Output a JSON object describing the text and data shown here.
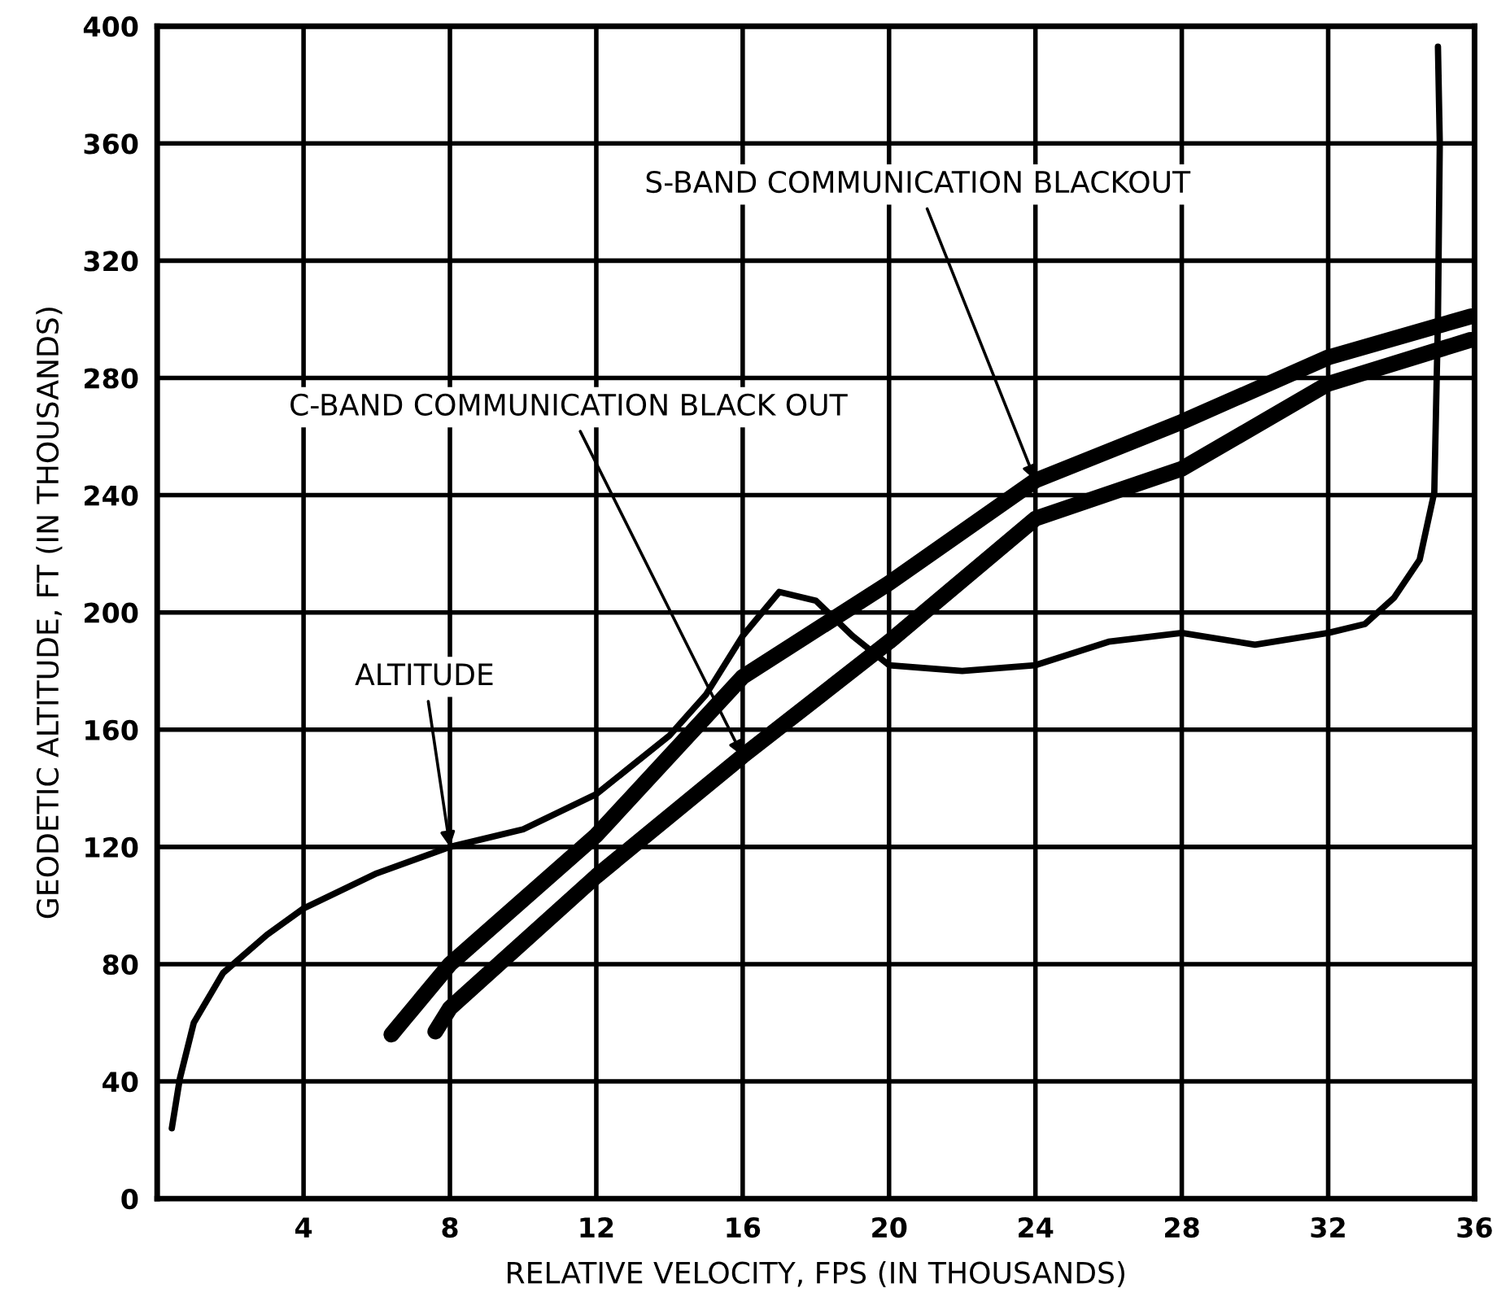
{
  "chart_data": {
    "type": "line",
    "xlabel": "RELATIVE VELOCITY, FPS (IN THOUSANDS)",
    "ylabel": "GEODETIC ALTITUDE, FT (IN THOUSANDS)",
    "xlim": [
      0,
      36
    ],
    "ylim": [
      0,
      400
    ],
    "xticks": [
      4,
      8,
      12,
      16,
      20,
      24,
      28,
      32,
      36
    ],
    "yticks": [
      0,
      40,
      80,
      120,
      160,
      200,
      240,
      280,
      320,
      360,
      400
    ],
    "grid": true,
    "series": [
      {
        "color": "#000000",
        "line_style": "solid",
        "x": [
          0.4,
          0.62,
          1.0,
          1.8,
          3.0,
          4,
          6,
          8,
          10,
          12,
          14,
          15,
          16,
          17,
          18,
          19,
          20,
          22,
          24,
          26,
          28,
          30,
          32,
          33,
          33.8,
          34.5,
          34.9,
          35.0,
          35.05,
          35.0
        ],
        "values": [
          24,
          41,
          60,
          77,
          90,
          99,
          111,
          120,
          126,
          138,
          158,
          172,
          192,
          207,
          204,
          192,
          182,
          180,
          182,
          190,
          193,
          189,
          193,
          196,
          205,
          218,
          241,
          300,
          360,
          393
        ]
      },
      {
        "color": "#000000",
        "line_style": "solid",
        "x": [
          6.4,
          8,
          12,
          16,
          20,
          24,
          28,
          32,
          35.9
        ],
        "values": [
          56,
          80,
          124,
          178,
          210,
          245,
          265,
          287,
          301
        ]
      },
      {
        "color": "#000000",
        "line_style": "solid",
        "x": [
          7.6,
          8,
          12,
          16,
          20,
          24,
          28,
          32,
          35.9
        ],
        "values": [
          57,
          65,
          110,
          151,
          190,
          232,
          249,
          278,
          293
        ]
      }
    ],
    "annotations": [
      {
        "text": "ALTITUDE",
        "x": 8,
        "y": 120
      },
      {
        "text": "S-BAND COMMUNICATION BLACKOUT",
        "x": 24,
        "y": 245
      },
      {
        "text": "C-BAND COMMUNICATION BLACK OUT",
        "x": 16,
        "y": 151
      }
    ]
  }
}
